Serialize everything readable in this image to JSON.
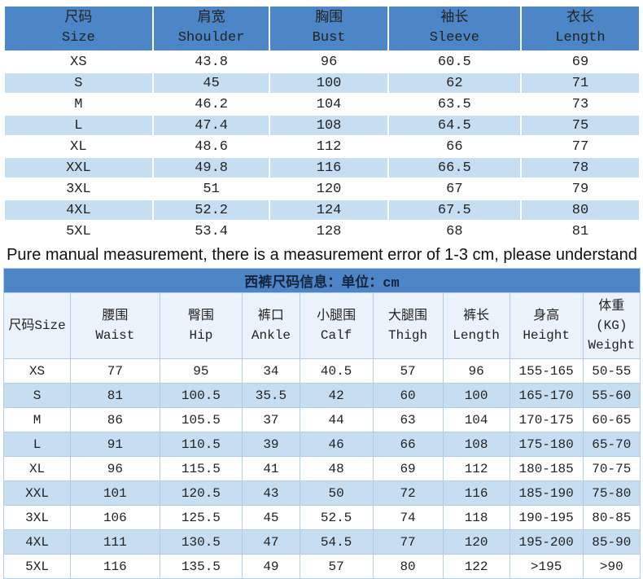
{
  "colors": {
    "header_blue": "#4c86c6",
    "row_alt_blue": "#c6ddf2",
    "pants_header_bg": "#eaf2fb",
    "grid_line": "#b3cde8",
    "text": "#222222"
  },
  "shirt": {
    "columns": [
      {
        "zh": "尺码",
        "en": "Size"
      },
      {
        "zh": "肩宽",
        "en": "Shoulder"
      },
      {
        "zh": "胸围",
        "en": "Bust"
      },
      {
        "zh": "袖长",
        "en": "Sleeve"
      },
      {
        "zh": "衣长",
        "en": "Length"
      }
    ],
    "rows": [
      [
        "XS",
        "43.8",
        "96",
        "60.5",
        "69"
      ],
      [
        "S",
        "45",
        "100",
        "62",
        "71"
      ],
      [
        "M",
        "46.2",
        "104",
        "63.5",
        "73"
      ],
      [
        "L",
        "47.4",
        "108",
        "64.5",
        "75"
      ],
      [
        "XL",
        "48.6",
        "112",
        "66",
        "77"
      ],
      [
        "XXL",
        "49.8",
        "116",
        "66.5",
        "78"
      ],
      [
        "3XL",
        "51",
        "120",
        "67",
        "79"
      ],
      [
        "4XL",
        "52.2",
        "124",
        "67.5",
        "80"
      ],
      [
        "5XL",
        "53.4",
        "128",
        "68",
        "81"
      ]
    ]
  },
  "notice": {
    "text": "Pure manual measurement, there is a measurement error of 1-3 cm, please understand"
  },
  "pants": {
    "title": "西裤尺码信息：单位：cm",
    "columns": [
      {
        "zh": "尺码Size",
        "en": ""
      },
      {
        "zh": "腰围",
        "en": "Waist"
      },
      {
        "zh": "臀围",
        "en": "Hip"
      },
      {
        "zh": "裤口",
        "en": "Ankle"
      },
      {
        "zh": "小腿围",
        "en": "Calf"
      },
      {
        "zh": "大腿围",
        "en": "Thigh"
      },
      {
        "zh": "裤长",
        "en": "Length"
      },
      {
        "zh": "身高",
        "en": "Height"
      },
      {
        "zh": "体重(KG)",
        "en": "Weight"
      }
    ],
    "rows": [
      [
        "XS",
        "77",
        "95",
        "34",
        "40.5",
        "57",
        "96",
        "155-165",
        "50-55"
      ],
      [
        "S",
        "81",
        "100.5",
        "35.5",
        "42",
        "60",
        "100",
        "165-170",
        "55-60"
      ],
      [
        "M",
        "86",
        "105.5",
        "37",
        "44",
        "63",
        "104",
        "170-175",
        "60-65"
      ],
      [
        "L",
        "91",
        "110.5",
        "39",
        "46",
        "66",
        "108",
        "175-180",
        "65-70"
      ],
      [
        "XL",
        "96",
        "115.5",
        "41",
        "48",
        "69",
        "112",
        "180-185",
        "70-75"
      ],
      [
        "XXL",
        "101",
        "120.5",
        "43",
        "50",
        "72",
        "116",
        "185-190",
        "75-80"
      ],
      [
        "3XL",
        "106",
        "125.5",
        "45",
        "52.5",
        "74",
        "118",
        "190-195",
        "80-85"
      ],
      [
        "4XL",
        "111",
        "130.5",
        "47",
        "54.5",
        "77",
        "120",
        "195-200",
        "85-90"
      ],
      [
        "5XL",
        "116",
        "135.5",
        "49",
        "57",
        "80",
        "122",
        ">195",
        ">90"
      ]
    ]
  }
}
